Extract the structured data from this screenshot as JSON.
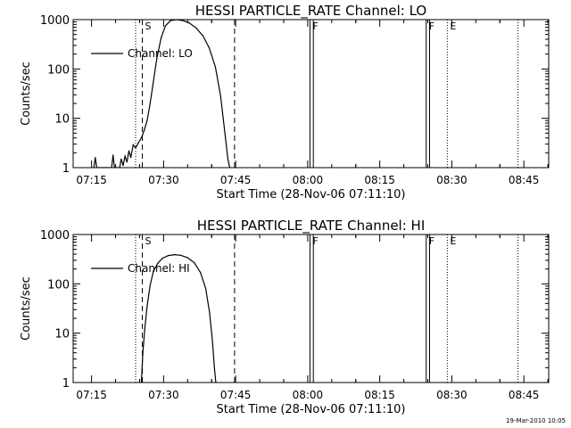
{
  "chart_data": [
    {
      "type": "line",
      "title": "HESSI PARTICLE_RATE Channel: LO",
      "xlabel": "Start Time (28-Nov-06 07:11:10)",
      "ylabel": "Counts/sec",
      "x_unit": "minutes after 07:11:10",
      "xlim": [
        0,
        99
      ],
      "ylim": [
        1,
        1000
      ],
      "yscale": "log",
      "x_ticks": [
        {
          "label": "07:15",
          "x": 3.83
        },
        {
          "label": "07:30",
          "x": 18.83
        },
        {
          "label": "07:45",
          "x": 33.83
        },
        {
          "label": "08:00",
          "x": 48.83
        },
        {
          "label": "08:15",
          "x": 63.83
        },
        {
          "label": "08:30",
          "x": 78.83
        },
        {
          "label": "08:45",
          "x": 93.83
        }
      ],
      "y_ticks": [
        {
          "label": "1",
          "y": 1
        },
        {
          "label": "10",
          "y": 10
        },
        {
          "label": "100",
          "y": 100
        },
        {
          "label": "1000",
          "y": 1000
        }
      ],
      "legend": {
        "placement": "top-left"
      },
      "series": [
        {
          "name": "Channel: LO",
          "x": [
            4.3,
            4.6,
            4.9,
            5.2,
            8.0,
            8.3,
            8.6,
            9.7,
            10.0,
            10.4,
            10.8,
            11.2,
            11.6,
            12.0,
            12.5,
            13.0,
            13.6,
            14.3,
            14.8,
            15.4,
            16.0,
            16.7,
            17.4,
            18.3,
            19.2,
            20.3,
            21.5,
            22.8,
            24.2,
            25.6,
            27.0,
            28.3,
            29.6,
            30.7,
            31.7,
            32.2,
            32.6
          ],
          "y": [
            1,
            1.6,
            1,
            1,
            1,
            1.8,
            1,
            1,
            1.5,
            1.1,
            1.7,
            1.3,
            2.2,
            1.6,
            2.9,
            2.5,
            3.2,
            4.2,
            5.8,
            9,
            19,
            55,
            160,
            420,
            750,
            960,
            1000,
            960,
            850,
            680,
            470,
            270,
            110,
            28,
            4,
            1.5,
            1
          ]
        }
      ],
      "markers": [
        {
          "type": "dotted",
          "x": 13.0
        },
        {
          "type": "dashed",
          "x": 14.4,
          "label": "S"
        },
        {
          "type": "dashed",
          "x": 33.6
        },
        {
          "type": "solid",
          "x": 49.3,
          "label": "F"
        },
        {
          "type": "solid",
          "x": 50.0
        },
        {
          "type": "solid",
          "x": 73.5,
          "label": "F"
        },
        {
          "type": "solid",
          "x": 74.2
        },
        {
          "type": "dotted",
          "x": 77.9,
          "label": "E"
        },
        {
          "type": "dotted",
          "x": 92.6
        }
      ]
    },
    {
      "type": "line",
      "title": "HESSI PARTICLE_RATE Channel: HI",
      "xlabel": "Start Time (28-Nov-06 07:11:10)",
      "ylabel": "Counts/sec",
      "x_unit": "minutes after 07:11:10",
      "xlim": [
        0,
        99
      ],
      "ylim": [
        1,
        1000
      ],
      "yscale": "log",
      "x_ticks": [
        {
          "label": "07:15",
          "x": 3.83
        },
        {
          "label": "07:30",
          "x": 18.83
        },
        {
          "label": "07:45",
          "x": 33.83
        },
        {
          "label": "08:00",
          "x": 48.83
        },
        {
          "label": "08:15",
          "x": 63.83
        },
        {
          "label": "08:30",
          "x": 78.83
        },
        {
          "label": "08:45",
          "x": 93.83
        }
      ],
      "y_ticks": [
        {
          "label": "1",
          "y": 1
        },
        {
          "label": "10",
          "y": 10
        },
        {
          "label": "100",
          "y": 100
        },
        {
          "label": "1000",
          "y": 1000
        }
      ],
      "legend": {
        "placement": "top-left"
      },
      "series": [
        {
          "name": "Channel: HI",
          "x": [
            14.2,
            14.5,
            14.9,
            15.4,
            16.0,
            16.7,
            17.6,
            18.6,
            19.8,
            21.1,
            22.4,
            23.8,
            25.2,
            26.5,
            27.6,
            28.4,
            29.0,
            29.4,
            29.7
          ],
          "y": [
            1,
            4,
            12,
            35,
            90,
            180,
            260,
            330,
            375,
            390,
            380,
            340,
            270,
            170,
            80,
            26,
            7,
            2,
            1
          ]
        }
      ],
      "markers": [
        {
          "type": "dotted",
          "x": 13.0
        },
        {
          "type": "dashed",
          "x": 14.4,
          "label": "S"
        },
        {
          "type": "dashed",
          "x": 33.6
        },
        {
          "type": "solid",
          "x": 49.3,
          "label": "F"
        },
        {
          "type": "solid",
          "x": 50.0
        },
        {
          "type": "solid",
          "x": 73.5,
          "label": "F"
        },
        {
          "type": "solid",
          "x": 74.2
        },
        {
          "type": "dotted",
          "x": 77.9,
          "label": "E"
        },
        {
          "type": "dotted",
          "x": 92.6
        }
      ]
    }
  ],
  "footer": {
    "date_stamp": "19-Mar-2010 10:05"
  }
}
